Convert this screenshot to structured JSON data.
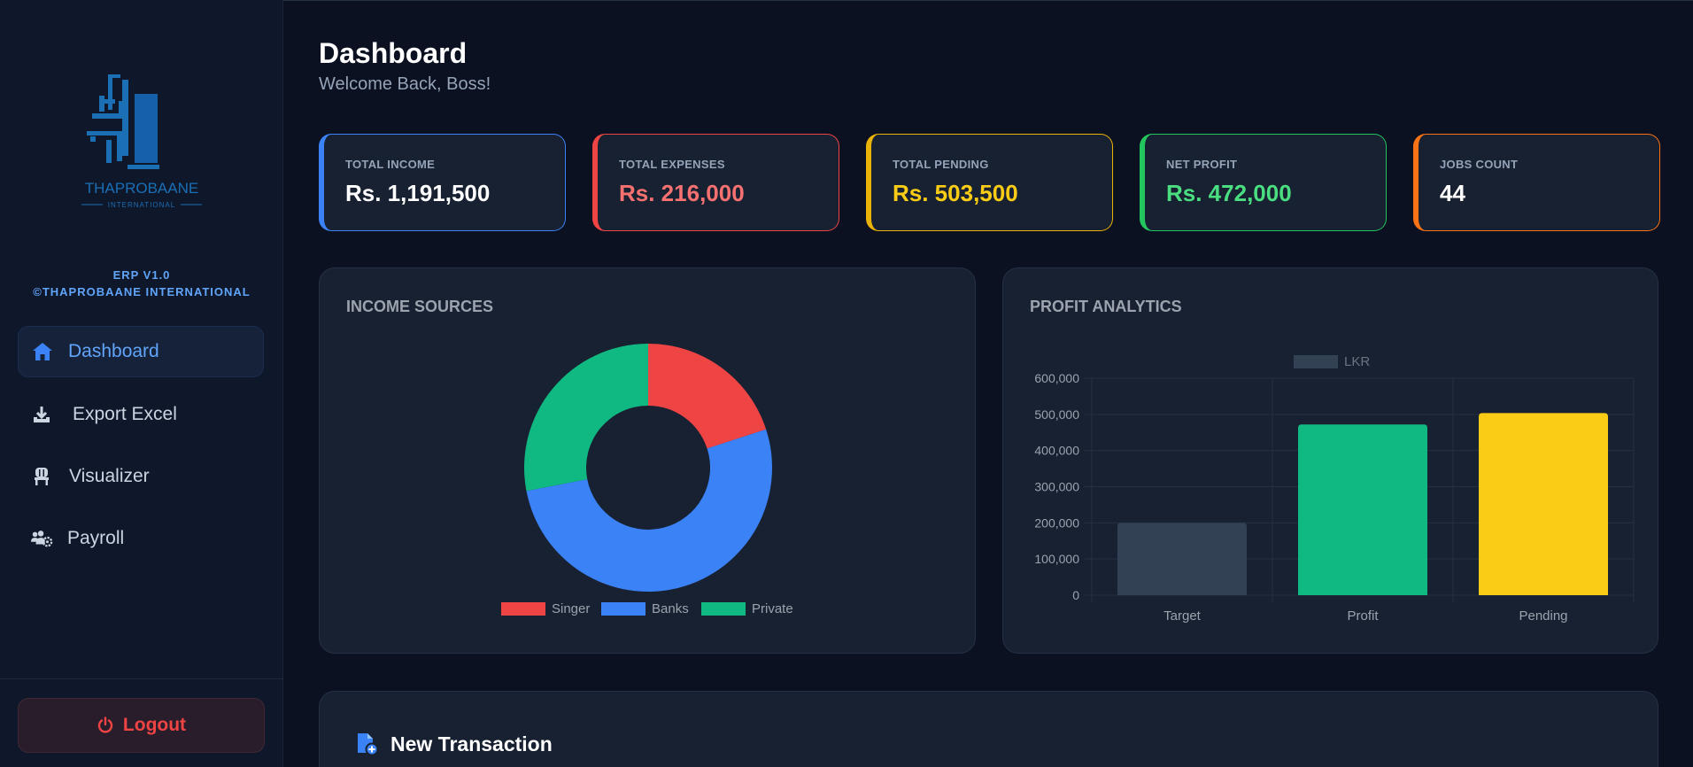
{
  "sidebar": {
    "brand_name": "THAPROBAANE",
    "brand_sub": "INTERNATIONAL",
    "version": "ERP V1.0",
    "copyright": "©THAPROBAANE INTERNATIONAL",
    "nav": [
      {
        "label": "Dashboard",
        "icon": "home-icon",
        "active": true
      },
      {
        "label": "Export Excel",
        "icon": "download-icon",
        "active": false
      },
      {
        "label": "Visualizer",
        "icon": "chair-icon",
        "active": false
      },
      {
        "label": "Payroll",
        "icon": "users-gear-icon",
        "active": false
      }
    ],
    "logout_label": "Logout"
  },
  "header": {
    "title": "Dashboard",
    "subtitle": "Welcome Back, Boss!"
  },
  "stats": [
    {
      "label": "TOTAL INCOME",
      "value": "Rs. 1,191,500",
      "color": "#3b82f6",
      "value_color": "#ffffff"
    },
    {
      "label": "TOTAL EXPENSES",
      "value": "Rs. 216,000",
      "color": "#ef4444",
      "value_color": "#f87171"
    },
    {
      "label": "TOTAL PENDING",
      "value": "Rs. 503,500",
      "color": "#eab308",
      "value_color": "#facc15"
    },
    {
      "label": "NET PROFIT",
      "value": "Rs. 472,000",
      "color": "#22c55e",
      "value_color": "#4ade80"
    },
    {
      "label": "JOBS COUNT",
      "value": "44",
      "color": "#f97316",
      "value_color": "#ffffff"
    }
  ],
  "income_panel": {
    "title": "INCOME SOURCES"
  },
  "profit_panel": {
    "title": "PROFIT ANALYTICS"
  },
  "chart_data": [
    {
      "type": "pie",
      "title": "INCOME SOURCES",
      "donut": true,
      "categories": [
        "Singer",
        "Banks",
        "Private"
      ],
      "values": [
        20,
        52,
        28
      ],
      "colors": [
        "#ef4444",
        "#3b82f6",
        "#10b981"
      ],
      "legend": "bottom"
    },
    {
      "type": "bar",
      "title": "PROFIT ANALYTICS",
      "categories": [
        "Target",
        "Profit",
        "Pending"
      ],
      "series": [
        {
          "name": "LKR",
          "values": [
            200000,
            472000,
            503500
          ]
        }
      ],
      "colors": [
        "#334155",
        "#10b981",
        "#facc15"
      ],
      "ylim": [
        0,
        600000
      ],
      "yticks": [
        "0",
        "100,000",
        "200,000",
        "300,000",
        "400,000",
        "500,000",
        "600,000"
      ],
      "grid": true,
      "legend": "top"
    }
  ],
  "transaction": {
    "title": "New Transaction"
  },
  "colors": {
    "background": "#0b1120",
    "sidebar": "#0f172a",
    "panel": "#182131",
    "accent": "#3b82f6"
  }
}
